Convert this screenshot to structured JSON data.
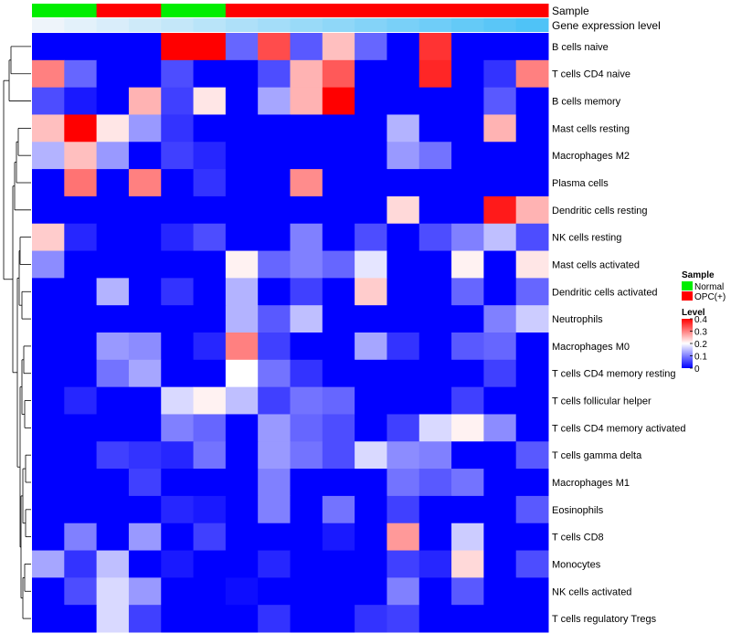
{
  "chart_data": {
    "type": "heatmap",
    "title": "",
    "columns": 16,
    "annotation_tracks": [
      {
        "name": "Sample",
        "values": [
          "Normal",
          "Normal",
          "OPC(+)",
          "OPC(+)",
          "Normal",
          "Normal",
          "OPC(+)",
          "OPC(+)",
          "OPC(+)",
          "OPC(+)",
          "OPC(+)",
          "OPC(+)",
          "OPC(+)",
          "OPC(+)",
          "OPC(+)",
          "OPC(+)"
        ]
      },
      {
        "name": "Gene expression level",
        "values": [
          0.01,
          0.02,
          0.03,
          0.04,
          0.05,
          0.06,
          0.07,
          0.08,
          0.09,
          0.1,
          0.11,
          0.12,
          0.13,
          0.14,
          0.15,
          0.16
        ]
      }
    ],
    "rows": [
      {
        "label": "B cells naive",
        "values": [
          0.0,
          0.0,
          0.0,
          0.0,
          0.4,
          0.4,
          0.08,
          0.34,
          0.07,
          0.25,
          0.08,
          0.0,
          0.36,
          0.0,
          0.0,
          0.0
        ]
      },
      {
        "label": "T cells CD4 naive",
        "values": [
          0.3,
          0.08,
          0.0,
          0.0,
          0.06,
          0.0,
          0.0,
          0.06,
          0.26,
          0.33,
          0.0,
          0.0,
          0.37,
          0.0,
          0.04,
          0.3
        ]
      },
      {
        "label": "B cells memory",
        "values": [
          0.06,
          0.02,
          0.0,
          0.26,
          0.05,
          0.22,
          0.0,
          0.13,
          0.26,
          0.4,
          0.0,
          0.0,
          0.0,
          0.0,
          0.07,
          0.0
        ]
      },
      {
        "label": "Mast cells resting",
        "values": [
          0.25,
          0.4,
          0.22,
          0.12,
          0.04,
          0.0,
          0.0,
          0.0,
          0.0,
          0.0,
          0.0,
          0.14,
          0.0,
          0.0,
          0.26,
          0.0
        ]
      },
      {
        "label": "Macrophages M2",
        "values": [
          0.14,
          0.25,
          0.12,
          0.0,
          0.05,
          0.03,
          0.0,
          0.0,
          0.0,
          0.0,
          0.0,
          0.12,
          0.09,
          0.0,
          0.0,
          0.0
        ]
      },
      {
        "label": "Plasma cells",
        "values": [
          0.0,
          0.31,
          0.0,
          0.3,
          0.0,
          0.04,
          0.0,
          0.0,
          0.29,
          0.0,
          0.0,
          0.0,
          0.0,
          0.0,
          0.0,
          0.0
        ]
      },
      {
        "label": "Dendritic cells resting",
        "values": [
          0.0,
          0.0,
          0.0,
          0.0,
          0.0,
          0.0,
          0.0,
          0.0,
          0.0,
          0.0,
          0.0,
          0.23,
          0.0,
          0.0,
          0.38,
          0.26
        ]
      },
      {
        "label": "NK cells resting",
        "values": [
          0.24,
          0.03,
          0.0,
          0.0,
          0.03,
          0.06,
          0.0,
          0.0,
          0.1,
          0.0,
          0.06,
          0.0,
          0.06,
          0.1,
          0.15,
          0.06
        ]
      },
      {
        "label": "Mast cells activated",
        "values": [
          0.11,
          0.0,
          0.0,
          0.0,
          0.0,
          0.0,
          0.21,
          0.08,
          0.1,
          0.08,
          0.18,
          0.0,
          0.0,
          0.21,
          0.0,
          0.22
        ]
      },
      {
        "label": "Dendritic cells activated",
        "values": [
          0.0,
          0.0,
          0.14,
          0.0,
          0.04,
          0.0,
          0.14,
          0.0,
          0.05,
          0.0,
          0.24,
          0.0,
          0.0,
          0.08,
          0.0,
          0.08
        ]
      },
      {
        "label": "Neutrophils",
        "values": [
          0.0,
          0.0,
          0.0,
          0.0,
          0.0,
          0.0,
          0.14,
          0.07,
          0.15,
          0.0,
          0.0,
          0.0,
          0.0,
          0.0,
          0.1,
          0.16
        ]
      },
      {
        "label": "Macrophages M0",
        "values": [
          0.0,
          0.0,
          0.12,
          0.11,
          0.0,
          0.03,
          0.3,
          0.05,
          0.0,
          0.0,
          0.13,
          0.04,
          0.0,
          0.07,
          0.08,
          0.0
        ]
      },
      {
        "label": "T cells CD4 memory resting",
        "values": [
          0.0,
          0.0,
          0.09,
          0.13,
          0.0,
          0.0,
          0.2,
          0.09,
          0.04,
          0.0,
          0.0,
          0.0,
          0.0,
          0.0,
          0.05,
          0.0
        ]
      },
      {
        "label": "T cells follicular helper",
        "values": [
          0.0,
          0.03,
          0.0,
          0.0,
          0.17,
          0.21,
          0.15,
          0.05,
          0.09,
          0.08,
          0.0,
          0.0,
          0.0,
          0.05,
          0.0,
          0.0
        ]
      },
      {
        "label": "T cells CD4 memory activated",
        "values": [
          0.0,
          0.0,
          0.0,
          0.0,
          0.1,
          0.08,
          0.0,
          0.12,
          0.08,
          0.06,
          0.0,
          0.05,
          0.17,
          0.21,
          0.11,
          0.0
        ]
      },
      {
        "label": "T cells gamma delta",
        "values": [
          0.0,
          0.0,
          0.05,
          0.04,
          0.03,
          0.09,
          0.0,
          0.12,
          0.09,
          0.06,
          0.17,
          0.11,
          0.1,
          0.0,
          0.0,
          0.07
        ]
      },
      {
        "label": "Macrophages M1",
        "values": [
          0.0,
          0.0,
          0.0,
          0.05,
          0.0,
          0.0,
          0.0,
          0.1,
          0.0,
          0.0,
          0.0,
          0.09,
          0.07,
          0.09,
          0.0,
          0.0
        ]
      },
      {
        "label": "Eosinophils",
        "values": [
          0.0,
          0.0,
          0.0,
          0.0,
          0.03,
          0.02,
          0.0,
          0.1,
          0.0,
          0.09,
          0.0,
          0.05,
          0.0,
          0.0,
          0.0,
          0.07
        ]
      },
      {
        "label": "T cells CD8",
        "values": [
          0.0,
          0.1,
          0.0,
          0.12,
          0.0,
          0.05,
          0.0,
          0.0,
          0.0,
          0.02,
          0.0,
          0.28,
          0.0,
          0.16,
          0.0,
          0.0
        ]
      },
      {
        "label": "Monocytes",
        "values": [
          0.13,
          0.04,
          0.15,
          0.0,
          0.02,
          0.0,
          0.0,
          0.03,
          0.0,
          0.0,
          0.0,
          0.05,
          0.03,
          0.23,
          0.0,
          0.06
        ]
      },
      {
        "label": "NK cells activated",
        "values": [
          0.0,
          0.06,
          0.17,
          0.12,
          0.0,
          0.0,
          0.01,
          0.0,
          0.0,
          0.0,
          0.0,
          0.1,
          0.0,
          0.07,
          0.0,
          0.0
        ]
      },
      {
        "label": "T cells regulatory  Tregs",
        "values": [
          0.0,
          0.0,
          0.17,
          0.05,
          0.0,
          0.0,
          0.0,
          0.04,
          0.0,
          0.0,
          0.04,
          0.05,
          0.0,
          0.0,
          0.0,
          0.0
        ]
      }
    ],
    "color_scale": {
      "title": "Level",
      "min": 0,
      "max": 0.4,
      "ticks": [
        0.4,
        0.3,
        0.2,
        0.1,
        0
      ],
      "tick_labels": [
        "0.4",
        "0.3",
        "0.2",
        "0.1",
        "0"
      ],
      "stops": [
        {
          "value": 0,
          "color": "#0000FF"
        },
        {
          "value": 0.2,
          "color": "#FFFFFF"
        },
        {
          "value": 0.4,
          "color": "#FF0000"
        }
      ]
    },
    "legend": {
      "position": "right",
      "sample_title": "Sample",
      "sample_entries": [
        {
          "label": "Normal",
          "color": "#00EE00"
        },
        {
          "label": "OPC(+)",
          "color": "#FF0000"
        }
      ]
    },
    "dendrogram": "rows",
    "expression_colors": [
      "#EEF4FA",
      "#4FC3F7"
    ]
  }
}
